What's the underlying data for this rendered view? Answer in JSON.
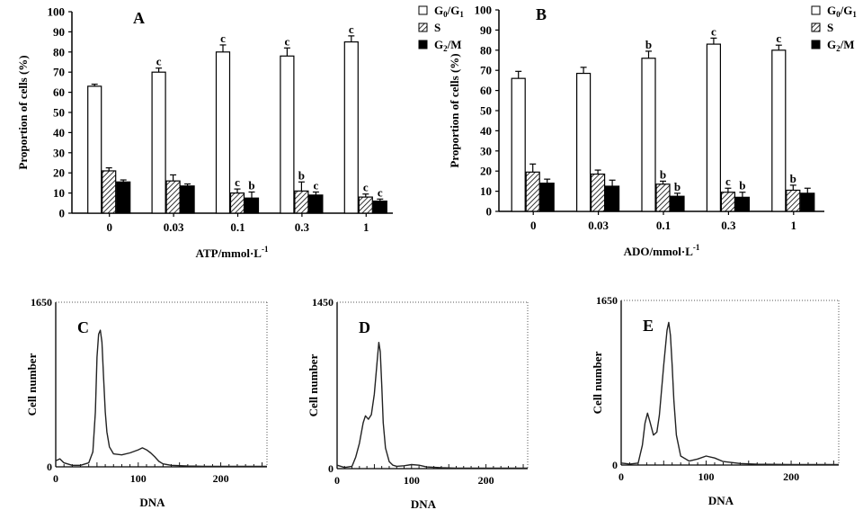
{
  "chart_data": [
    {
      "type": "bar",
      "panel": "A",
      "xlabel": "ATP/mmol·L",
      "xlabel_sup": "-1",
      "ylabel": "Proportion of cells (%)",
      "ylim": [
        0,
        100
      ],
      "yticks": [
        0,
        10,
        20,
        30,
        40,
        50,
        60,
        70,
        80,
        90,
        100
      ],
      "categories": [
        "0",
        "0.03",
        "0.1",
        "0.3",
        "1"
      ],
      "legend_position": "top-right",
      "series": [
        {
          "name": "G0/G1",
          "name_base": "G",
          "name_sub1": "0",
          "name_mid": "/G",
          "name_sub2": "1",
          "pattern": "open",
          "values": [
            63,
            70,
            80,
            78,
            85
          ],
          "errors": [
            1,
            2,
            3.5,
            4,
            3
          ],
          "sig": [
            "",
            "c",
            "c",
            "c",
            "c"
          ]
        },
        {
          "name": "S",
          "name_base": "S",
          "pattern": "hatched",
          "values": [
            21,
            16,
            10,
            11,
            8
          ],
          "errors": [
            1.5,
            3,
            2,
            4.5,
            1.5
          ],
          "sig": [
            "",
            "",
            "c",
            "b",
            "c"
          ]
        },
        {
          "name": "G2/M",
          "name_base": "G",
          "name_sub1": "2",
          "name_mid": "/M",
          "pattern": "filled",
          "values": [
            15.5,
            13.5,
            7.5,
            9,
            6
          ],
          "errors": [
            1,
            1,
            3,
            1.5,
            1
          ],
          "sig": [
            "",
            "",
            "b",
            "c",
            "c"
          ]
        }
      ]
    },
    {
      "type": "bar",
      "panel": "B",
      "xlabel": "ADO/mmol·L",
      "xlabel_sup": "-1",
      "ylabel": "Proportion of cells (%)",
      "ylim": [
        0,
        100
      ],
      "yticks": [
        0,
        10,
        20,
        30,
        40,
        50,
        60,
        70,
        80,
        90,
        100
      ],
      "categories": [
        "0",
        "0.03",
        "0.1",
        "0.3",
        "1"
      ],
      "legend_position": "top-right",
      "series": [
        {
          "name": "G0/G1",
          "name_base": "G",
          "name_sub1": "0",
          "name_mid": "/G",
          "name_sub2": "1",
          "pattern": "open",
          "values": [
            66,
            68.5,
            76,
            83,
            80
          ],
          "errors": [
            3.5,
            3,
            3.5,
            3,
            2.5
          ],
          "sig": [
            "",
            "",
            "b",
            "c",
            "c"
          ]
        },
        {
          "name": "S",
          "name_base": "S",
          "pattern": "hatched",
          "values": [
            19.5,
            18.5,
            13.5,
            9.5,
            10.5
          ],
          "errors": [
            4,
            2,
            1.5,
            2,
            2.5
          ],
          "sig": [
            "",
            "",
            "b",
            "c",
            "b"
          ]
        },
        {
          "name": "G2/M",
          "name_base": "G",
          "name_sub1": "2",
          "name_mid": "/M",
          "pattern": "filled",
          "values": [
            14,
            12.5,
            7.5,
            7,
            9
          ],
          "errors": [
            2,
            3,
            1.5,
            2.5,
            2.5
          ],
          "sig": [
            "",
            "",
            "b",
            "b",
            ""
          ]
        }
      ]
    },
    {
      "type": "line",
      "panel": "C",
      "xlabel": "DNA",
      "ylabel": "Cell number",
      "xlim": [
        0,
        256
      ],
      "ylim": [
        0,
        1650
      ],
      "xticks": [
        0,
        100,
        200
      ],
      "ytick_labels": [
        "0",
        "1650"
      ],
      "x": [
        0,
        5,
        10,
        20,
        30,
        40,
        45,
        48,
        50,
        52,
        54,
        56,
        58,
        60,
        62,
        65,
        70,
        80,
        90,
        100,
        105,
        110,
        115,
        120,
        125,
        130,
        140,
        160,
        180,
        200,
        220,
        240,
        256
      ],
      "y": [
        60,
        80,
        40,
        15,
        15,
        40,
        150,
        550,
        1100,
        1330,
        1370,
        1250,
        900,
        550,
        350,
        200,
        130,
        120,
        140,
        170,
        190,
        170,
        140,
        100,
        55,
        30,
        15,
        8,
        5,
        5,
        5,
        5,
        5
      ]
    },
    {
      "type": "line",
      "panel": "D",
      "xlabel": "DNA",
      "ylabel": "Cell number",
      "xlim": [
        0,
        256
      ],
      "ylim": [
        0,
        1450
      ],
      "xticks": [
        0,
        100,
        200
      ],
      "ytick_labels": [
        "0",
        "1450"
      ],
      "x": [
        0,
        5,
        10,
        20,
        25,
        30,
        35,
        38,
        42,
        46,
        50,
        54,
        56,
        58,
        60,
        62,
        65,
        70,
        75,
        80,
        90,
        100,
        110,
        120,
        140,
        160,
        200,
        256
      ],
      "y": [
        30,
        20,
        10,
        20,
        100,
        220,
        400,
        460,
        430,
        470,
        650,
        950,
        1100,
        1020,
        720,
        400,
        180,
        60,
        30,
        20,
        25,
        35,
        30,
        15,
        8,
        5,
        5,
        5
      ]
    },
    {
      "type": "line",
      "panel": "E",
      "xlabel": "DNA",
      "ylabel": "Cell number",
      "xlim": [
        0,
        256
      ],
      "ylim": [
        0,
        1650
      ],
      "xticks": [
        0,
        100,
        200
      ],
      "ytick_labels": [
        "0",
        "1650"
      ],
      "x": [
        0,
        5,
        10,
        20,
        25,
        28,
        31,
        34,
        38,
        42,
        45,
        50,
        54,
        56,
        58,
        60,
        62,
        65,
        70,
        80,
        90,
        100,
        110,
        120,
        140,
        160,
        200,
        256
      ],
      "y": [
        20,
        15,
        10,
        20,
        200,
        420,
        520,
        430,
        300,
        330,
        500,
        1000,
        1350,
        1430,
        1300,
        1000,
        650,
        300,
        90,
        40,
        60,
        90,
        70,
        35,
        15,
        8,
        5,
        5
      ]
    }
  ]
}
